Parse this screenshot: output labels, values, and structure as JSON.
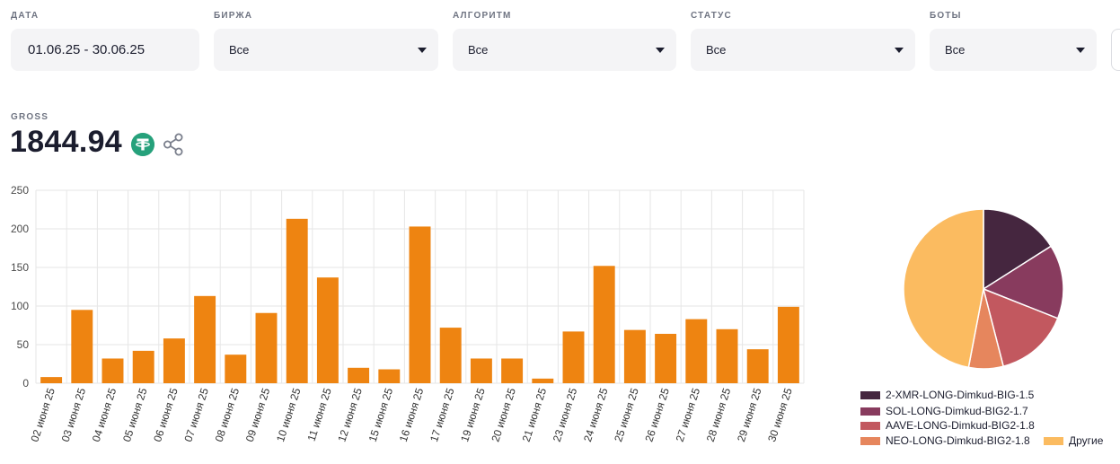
{
  "filters": [
    {
      "label": "ДАТА",
      "value": "01.06.25 - 30.06.25",
      "type": "date"
    },
    {
      "label": "БИРЖА",
      "value": "Все",
      "type": "select"
    },
    {
      "label": "АЛГОРИТМ",
      "value": "Все",
      "type": "select"
    },
    {
      "label": "СТАТУС",
      "value": "Все",
      "type": "select"
    },
    {
      "label": "БОТЫ",
      "value": "Все",
      "type": "select"
    }
  ],
  "gross": {
    "label": "GROSS",
    "value": "1844.94",
    "currency_icon": "tether-icon",
    "share_icon": "share-icon"
  },
  "colors": {
    "bar": "#ee8411",
    "grid": "#e6e6e6",
    "tether": "#26a17b"
  },
  "chart_data": [
    {
      "type": "bar",
      "categories": [
        "02 июня 25",
        "03 июня 25",
        "04 июня 25",
        "05 июня 25",
        "06 июня 25",
        "07 июня 25",
        "08 июня 25",
        "09 июня 25",
        "10 июня 25",
        "11 июня 25",
        "12 июня 25",
        "15 июня 25",
        "16 июня 25",
        "17 июня 25",
        "19 июня 25",
        "20 июня 25",
        "21 июня 25",
        "23 июня 25",
        "24 июня 25",
        "25 июня 25",
        "26 июня 25",
        "27 июня 25",
        "28 июня 25",
        "29 июня 25",
        "30 июня 25"
      ],
      "values": [
        8,
        95,
        32,
        42,
        58,
        113,
        37,
        91,
        213,
        137,
        20,
        18,
        203,
        72,
        32,
        32,
        6,
        67,
        152,
        69,
        64,
        83,
        70,
        44,
        99
      ],
      "ylim": [
        0,
        250
      ],
      "yticks": [
        0,
        50,
        100,
        150,
        200,
        250
      ],
      "grid": true
    },
    {
      "type": "pie",
      "slices": [
        {
          "label": "2-XMR-LONG-Dimkud-BIG-1.5",
          "value": 0.16,
          "color": "#45263f"
        },
        {
          "label": "SOL-LONG-Dimkud-BIG2-1.7",
          "value": 0.15,
          "color": "#883b5e"
        },
        {
          "label": "AAVE-LONG-Dimkud-BIG2-1.8",
          "value": 0.15,
          "color": "#c2585f"
        },
        {
          "label": "NEO-LONG-Dimkud-BIG2-1.8",
          "value": 0.07,
          "color": "#e6865d"
        },
        {
          "label": "Другие",
          "value": 0.47,
          "color": "#fbbb60"
        }
      ],
      "legend_placement": "bottom"
    }
  ]
}
